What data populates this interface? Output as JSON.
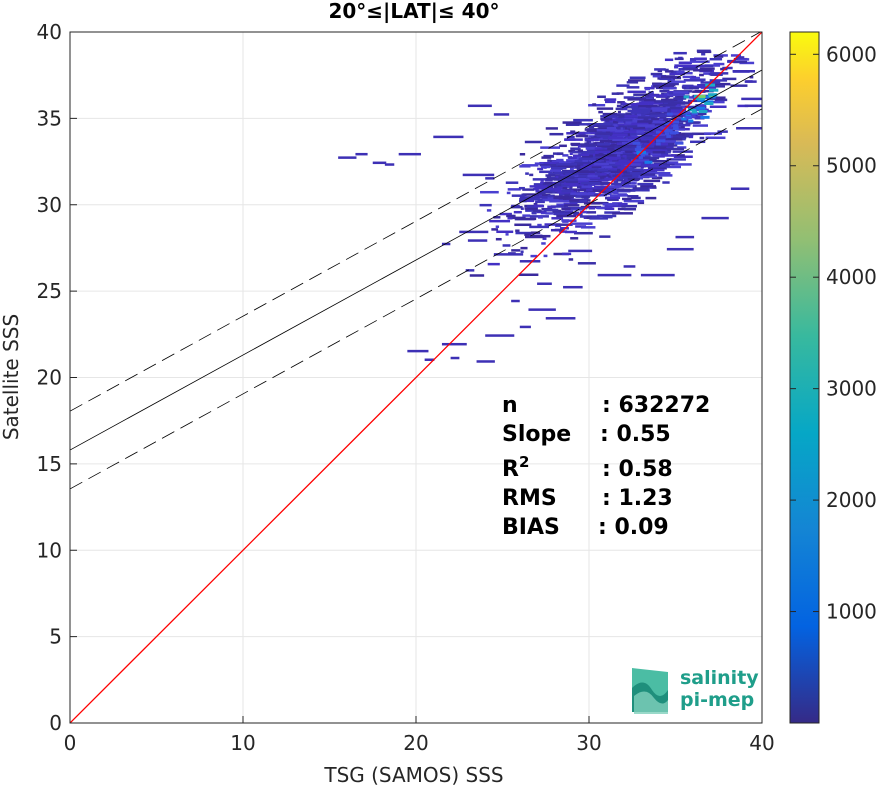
{
  "chart_data": {
    "type": "heatmap",
    "title": "20°≤|LAT|≤ 40°",
    "xlabel": "TSG (SAMOS) SSS",
    "ylabel": "Satellite SSS",
    "xlim": [
      0,
      40
    ],
    "ylim": [
      0,
      40
    ],
    "xticks": [
      "0",
      "10",
      "20",
      "30",
      "40"
    ],
    "yticks": [
      "0",
      "5",
      "10",
      "15",
      "20",
      "25",
      "30",
      "35",
      "40"
    ],
    "grid": true,
    "colorbar": {
      "range": [
        0,
        6200
      ],
      "ticks": [
        "1000",
        "2000",
        "3000",
        "4000",
        "5000",
        "6000"
      ],
      "colormap": "parula"
    },
    "identity_line": {
      "color": "#ff0000",
      "slope": 1,
      "intercept": 0
    },
    "regression_line": {
      "slope": 0.55,
      "intercept": 15.8,
      "color": "#000000"
    },
    "confidence_band": {
      "offset": 2.25,
      "style": "dashed"
    },
    "density_cores": [
      {
        "x": 33.0,
        "y": 33.3,
        "count": 1500
      },
      {
        "x": 34.5,
        "y": 34.3,
        "count": 1200
      },
      {
        "x": 35.5,
        "y": 35.2,
        "count": 1600
      },
      {
        "x": 36.2,
        "y": 35.8,
        "count": 2600
      },
      {
        "x": 36.7,
        "y": 36.4,
        "count": 3200
      }
    ],
    "stats": [
      {
        "label": "n",
        "value": ": 632272"
      },
      {
        "label": "Slope",
        "value": ": 0.55"
      },
      {
        "label": "R",
        "sup": "2",
        "value": ": 0.58"
      },
      {
        "label": "RMS",
        "value": ": 1.23"
      },
      {
        "label": "BIAS",
        "value": ": 0.09"
      }
    ]
  },
  "logo": {
    "line1": "salinity",
    "line2": "pi-mep",
    "color": "#1f9e8a"
  }
}
